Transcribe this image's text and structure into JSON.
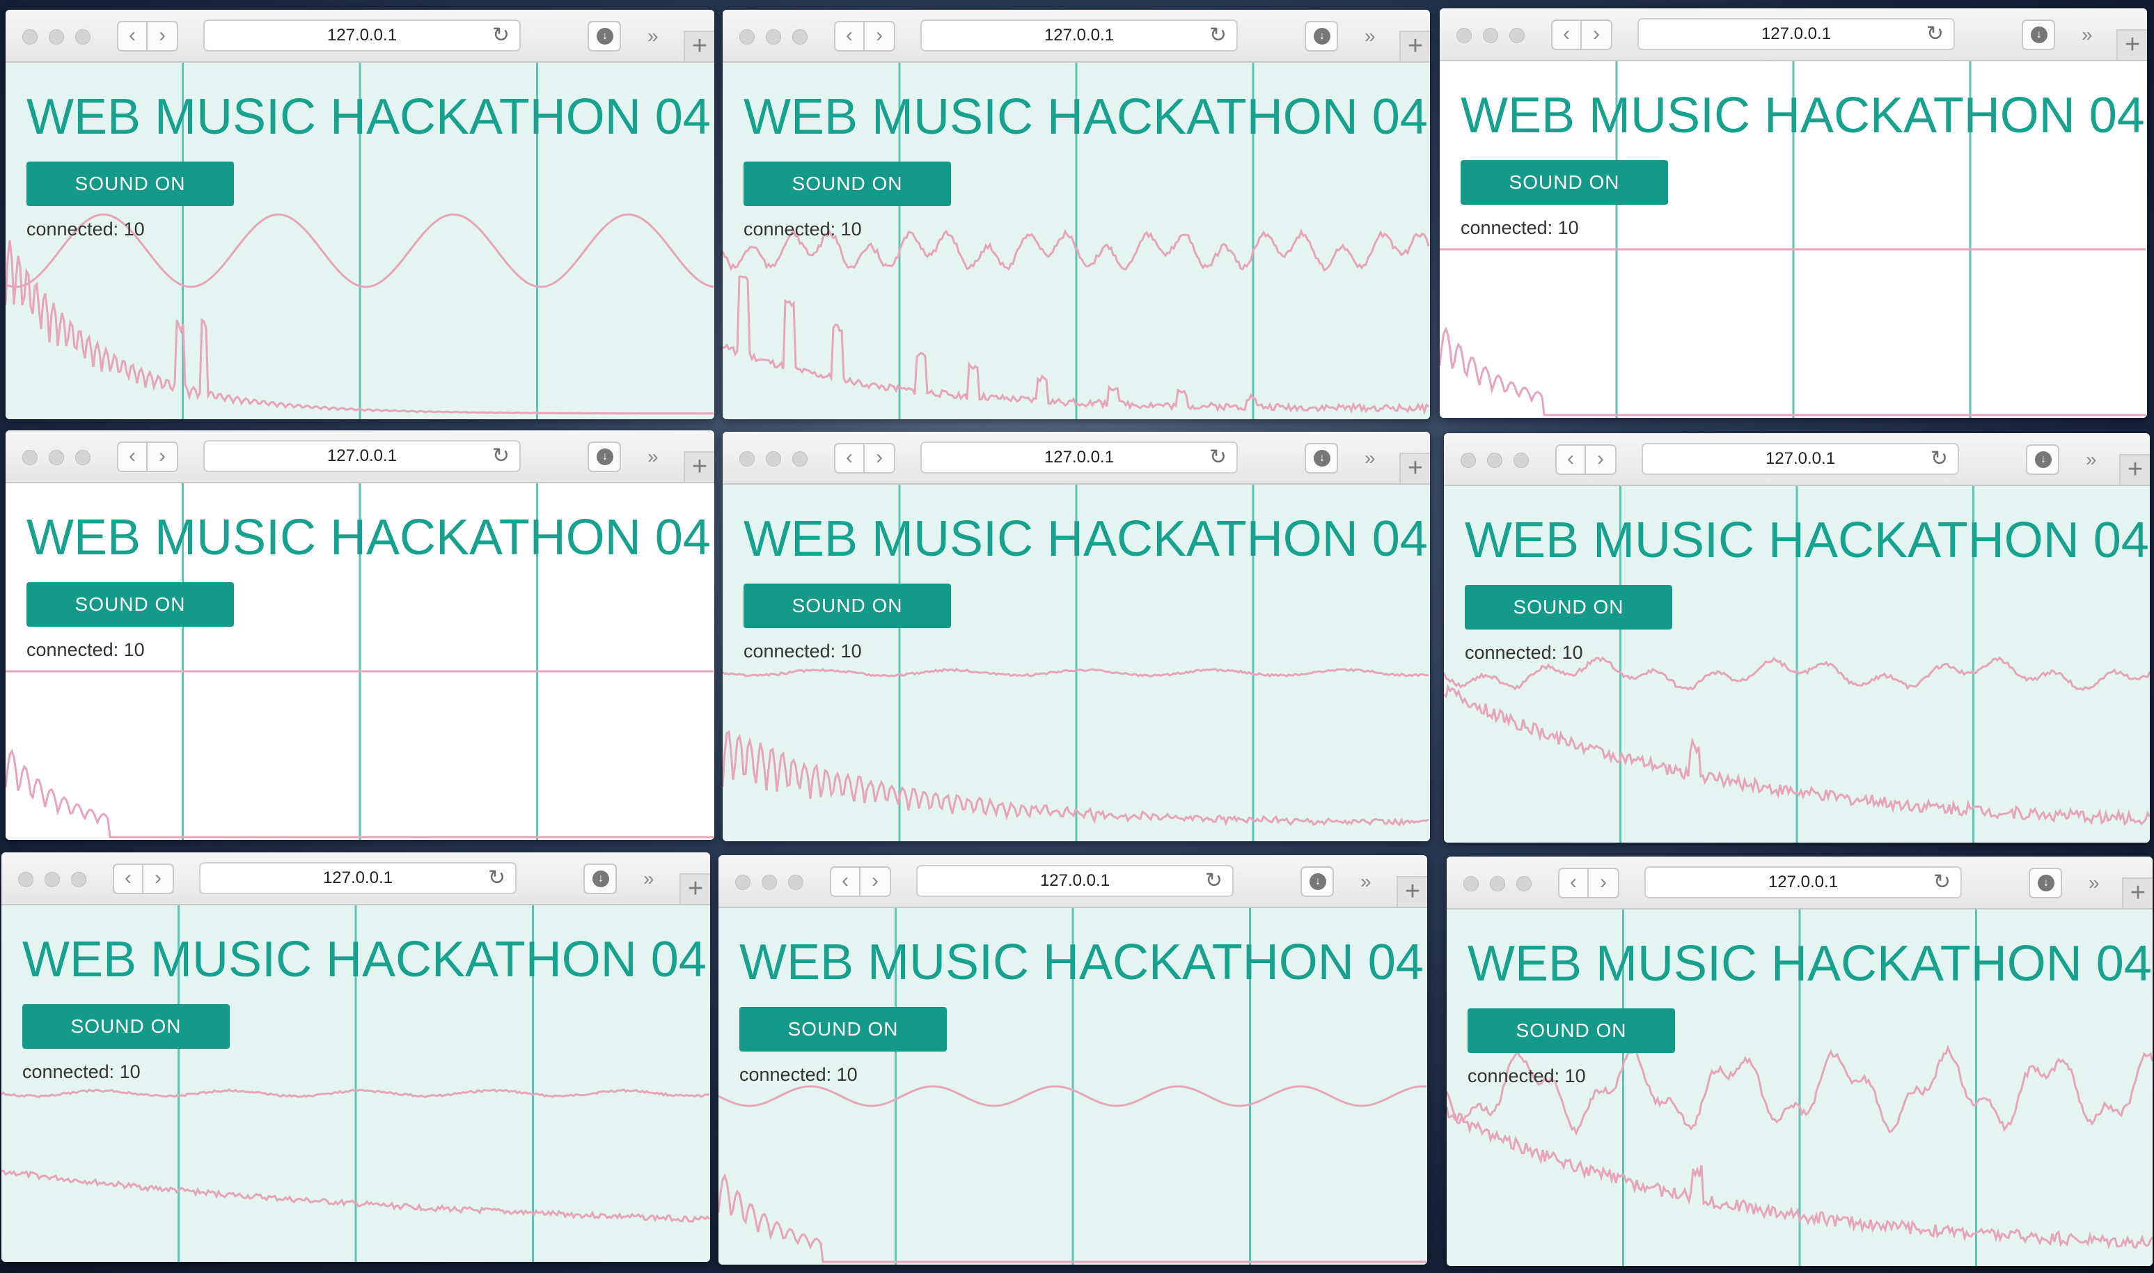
{
  "browser": {
    "url": "127.0.0.1",
    "chevron": "»",
    "new_tab": "+",
    "icons": {
      "back": "chevron-left-icon",
      "forward": "chevron-right-icon",
      "reload": "reload-icon",
      "downloads": "download-icon",
      "overflow": "double-chevron-icon",
      "new_tab": "plus-icon"
    }
  },
  "page": {
    "title": "WEB MUSIC HACKATHON 04",
    "sound_button": "SOUND ON",
    "connected_label": "connected: 10"
  },
  "colors": {
    "accent": "#149a89",
    "title": "#17a18f",
    "waveform": "#e8a4b8",
    "grid_line": "#5cc6b2",
    "content_bg": "#e3f4f1"
  },
  "windows": [
    {
      "id": 1,
      "wave": "sine-large",
      "spectrum": "dense-comb",
      "background": "mint"
    },
    {
      "id": 2,
      "wave": "jagged-medium",
      "spectrum": "harmonic-peaks",
      "background": "mint"
    },
    {
      "id": 3,
      "wave": "flat",
      "spectrum": "short-burst",
      "background": "white"
    },
    {
      "id": 4,
      "wave": "flat",
      "spectrum": "short-burst",
      "background": "white"
    },
    {
      "id": 5,
      "wave": "small-ripple",
      "spectrum": "long-comb",
      "background": "mint"
    },
    {
      "id": 6,
      "wave": "noisy-medium",
      "spectrum": "noisy-decay",
      "background": "mint"
    },
    {
      "id": 7,
      "wave": "small-ripple",
      "spectrum": "slow-decay",
      "background": "mint"
    },
    {
      "id": 8,
      "wave": "sine-small",
      "spectrum": "short-burst",
      "background": "mint"
    },
    {
      "id": 9,
      "wave": "noisy-large",
      "spectrum": "noisy-decay",
      "background": "mint"
    }
  ]
}
